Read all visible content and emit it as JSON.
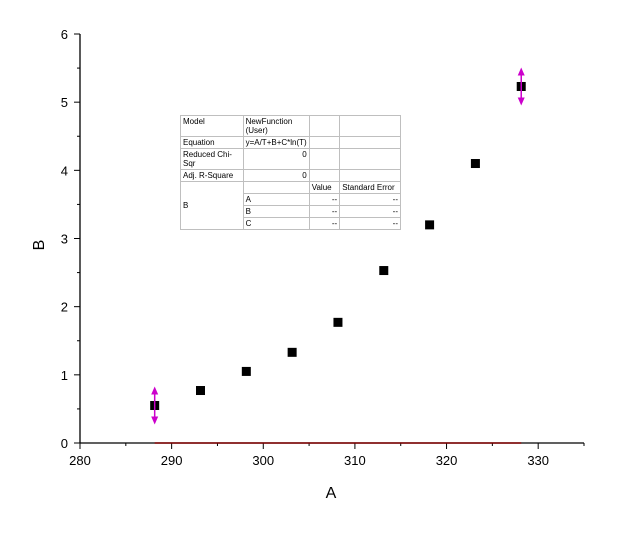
{
  "chart_data": {
    "type": "scatter",
    "xlabel": "A",
    "ylabel": "B",
    "xlim": [
      280,
      335
    ],
    "ylim": [
      0,
      6
    ],
    "x_ticks": [
      "280",
      "290",
      "300",
      "310",
      "320",
      "330"
    ],
    "y_ticks": [
      "0",
      "1",
      "2",
      "3",
      "4",
      "5",
      "6"
    ],
    "grid": false,
    "series": [
      {
        "marker": "square",
        "color": "#000000",
        "x": [
          288.15,
          293.15,
          298.15,
          303.15,
          308.15,
          313.15,
          318.15,
          323.15,
          328.15
        ],
        "y": [
          0.55,
          0.77,
          1.05,
          1.33,
          1.77,
          2.53,
          3.2,
          4.1,
          5.23
        ]
      }
    ],
    "range_markers": {
      "color": "#cc00cc",
      "x": [
        288.15,
        328.15
      ],
      "y": [
        0.55,
        5.23
      ]
    },
    "fit_line": {
      "color": "#800000",
      "x": [
        288.15,
        328.15
      ],
      "y": [
        0,
        0
      ]
    }
  },
  "stats_table": {
    "model_label": "Model",
    "model_value": "NewFunction (User)",
    "equation_label": "Equation",
    "equation_value": "y=A/T+B+C*ln(T)",
    "chisqr_label": "Reduced Chi-Sqr",
    "chisqr_value": "0",
    "r2_label": "Adj. R-Square",
    "r2_value": "0",
    "value_header": "Value",
    "stderr_header": "Standard Error",
    "param_group_label": "B",
    "params": [
      {
        "name": "A",
        "value": "--",
        "stderr": "--"
      },
      {
        "name": "B",
        "value": "--",
        "stderr": "--"
      },
      {
        "name": "C",
        "value": "--",
        "stderr": "--"
      }
    ]
  }
}
